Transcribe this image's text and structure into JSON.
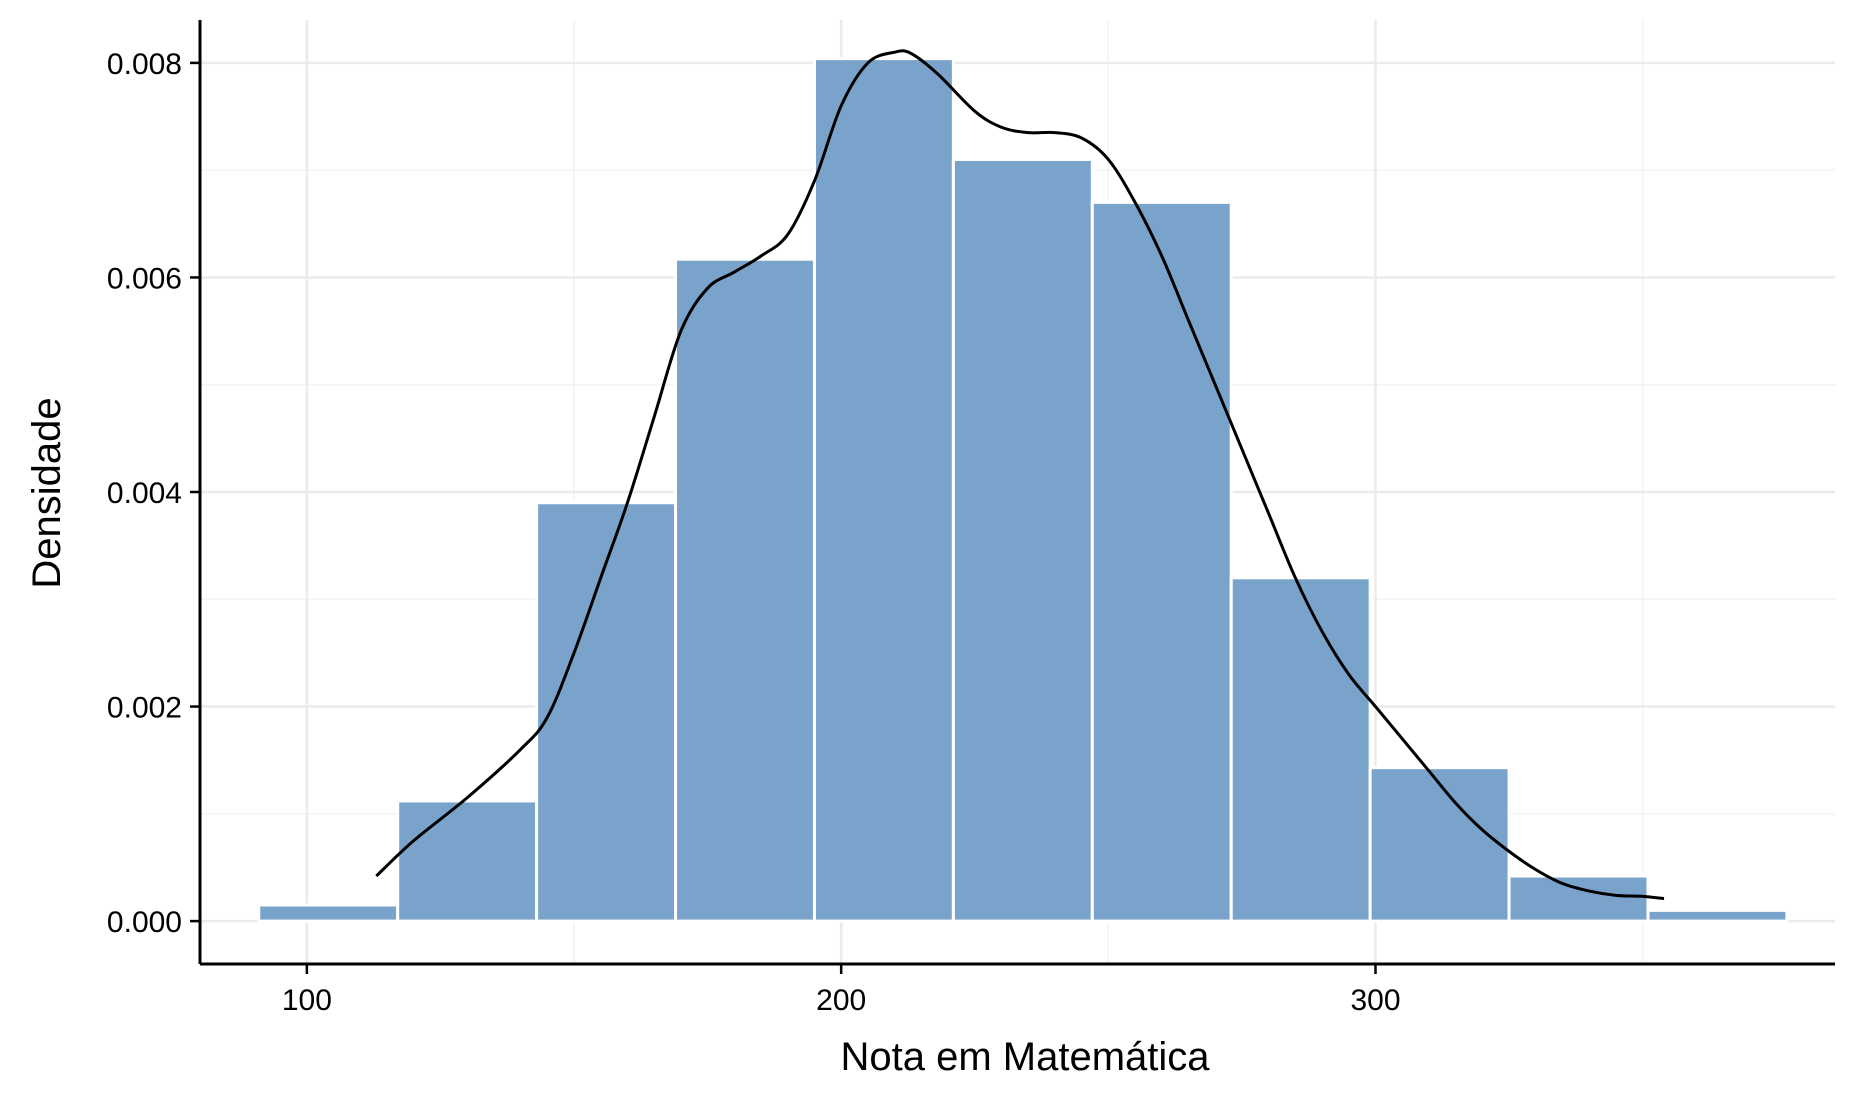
{
  "chart_data": {
    "type": "bar",
    "title": "",
    "xlabel": "Nota em Matemática",
    "ylabel": "Densidade",
    "xlim": [
      80,
      386
    ],
    "ylim": [
      -0.0004,
      0.0084
    ],
    "x_ticks": [
      100,
      200,
      300
    ],
    "x_tick_labels": [
      "100",
      "200",
      "300"
    ],
    "y_ticks": [
      0,
      0.002,
      0.004,
      0.006,
      0.008
    ],
    "y_tick_labels": [
      "0.000",
      "0.002",
      "0.004",
      "0.006",
      "0.008"
    ],
    "grid": true,
    "bin_width": 26,
    "bins": [
      {
        "x0": 91,
        "x1": 117,
        "density": 0.00015
      },
      {
        "x0": 117,
        "x1": 143,
        "density": 0.00112
      },
      {
        "x0": 143,
        "x1": 169,
        "density": 0.0039
      },
      {
        "x0": 169,
        "x1": 195,
        "density": 0.00617
      },
      {
        "x0": 195,
        "x1": 221,
        "density": 0.00804
      },
      {
        "x0": 221,
        "x1": 247,
        "density": 0.0071
      },
      {
        "x0": 247,
        "x1": 273,
        "density": 0.0067
      },
      {
        "x0": 273,
        "x1": 299,
        "density": 0.0032
      },
      {
        "x0": 299,
        "x1": 325,
        "density": 0.00143
      },
      {
        "x0": 325,
        "x1": 351,
        "density": 0.00042
      },
      {
        "x0": 351,
        "x1": 377,
        "density": 0.0001
      }
    ],
    "density_curve": {
      "x": [
        113,
        120,
        130,
        140,
        145,
        150,
        155,
        160,
        165,
        170,
        175,
        180,
        185,
        190,
        195,
        200,
        205,
        210,
        213,
        218,
        225,
        230,
        235,
        240,
        245,
        250,
        255,
        260,
        265,
        270,
        275,
        280,
        285,
        290,
        295,
        300,
        305,
        310,
        315,
        320,
        325,
        330,
        335,
        340,
        345,
        350,
        354
      ],
      "y": [
        0.00042,
        0.00075,
        0.00115,
        0.0016,
        0.0019,
        0.0025,
        0.0032,
        0.0039,
        0.0047,
        0.0055,
        0.0059,
        0.00605,
        0.0062,
        0.0064,
        0.0069,
        0.0076,
        0.008,
        0.0081,
        0.00809,
        0.0079,
        0.00755,
        0.0074,
        0.00735,
        0.00735,
        0.0073,
        0.0071,
        0.0067,
        0.0062,
        0.0056,
        0.005,
        0.0044,
        0.0038,
        0.0032,
        0.0027,
        0.0023,
        0.002,
        0.0017,
        0.0014,
        0.0011,
        0.00085,
        0.00065,
        0.00048,
        0.00035,
        0.00028,
        0.00024,
        0.00023,
        0.00021
      ]
    },
    "colors": {
      "bar_fill": "#7aa3cb",
      "bar_stroke": "#ffffff",
      "curve": "#000000",
      "grid_major": "#ebebeb",
      "grid_minor": "#f3f3f3",
      "axis": "#000000"
    }
  }
}
